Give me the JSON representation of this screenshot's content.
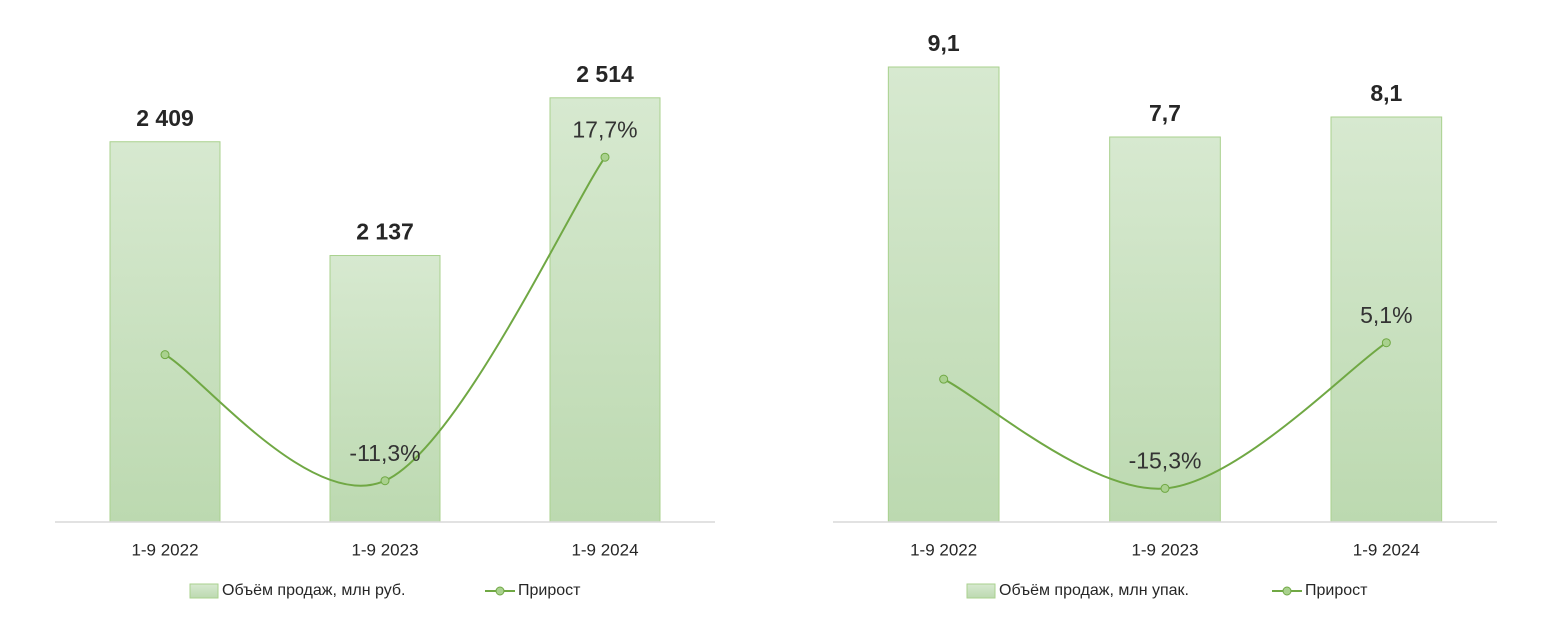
{
  "chart_data": [
    {
      "type": "combo",
      "categories": [
        "1-9 2022",
        "1-9 2023",
        "1-9 2024"
      ],
      "ylim": [
        1500,
        2700
      ],
      "y2lim": [
        -15,
        30
      ],
      "series": [
        {
          "name": "Объём продаж, млн руб.",
          "type": "bar",
          "color": "#c6dfbb",
          "values": [
            2409,
            2137,
            2514
          ],
          "value_labels": [
            "2 409",
            "2 137",
            "2 514"
          ]
        },
        {
          "name": "Прирост",
          "type": "line",
          "axis": "y2",
          "color": "#70a844",
          "values": [
            0,
            -11.3,
            17.7
          ],
          "value_labels": [
            null,
            "-11,3%",
            "17,7%"
          ]
        }
      ]
    },
    {
      "type": "combo",
      "categories": [
        "1-9 2022",
        "1-9 2023",
        "1-9 2024"
      ],
      "ylim": [
        0,
        10
      ],
      "y2lim": [
        -20,
        50
      ],
      "series": [
        {
          "name": "Объём продаж, млн упак.",
          "type": "bar",
          "color": "#c6dfbb",
          "values": [
            9.1,
            7.7,
            8.1
          ],
          "value_labels": [
            "9,1",
            "7,7",
            "8,1"
          ]
        },
        {
          "name": "Прирост",
          "type": "line",
          "axis": "y2",
          "color": "#70a844",
          "values": [
            0,
            -15.3,
            5.1
          ],
          "value_labels": [
            null,
            "-15,3%",
            "5,1%"
          ]
        }
      ]
    }
  ]
}
